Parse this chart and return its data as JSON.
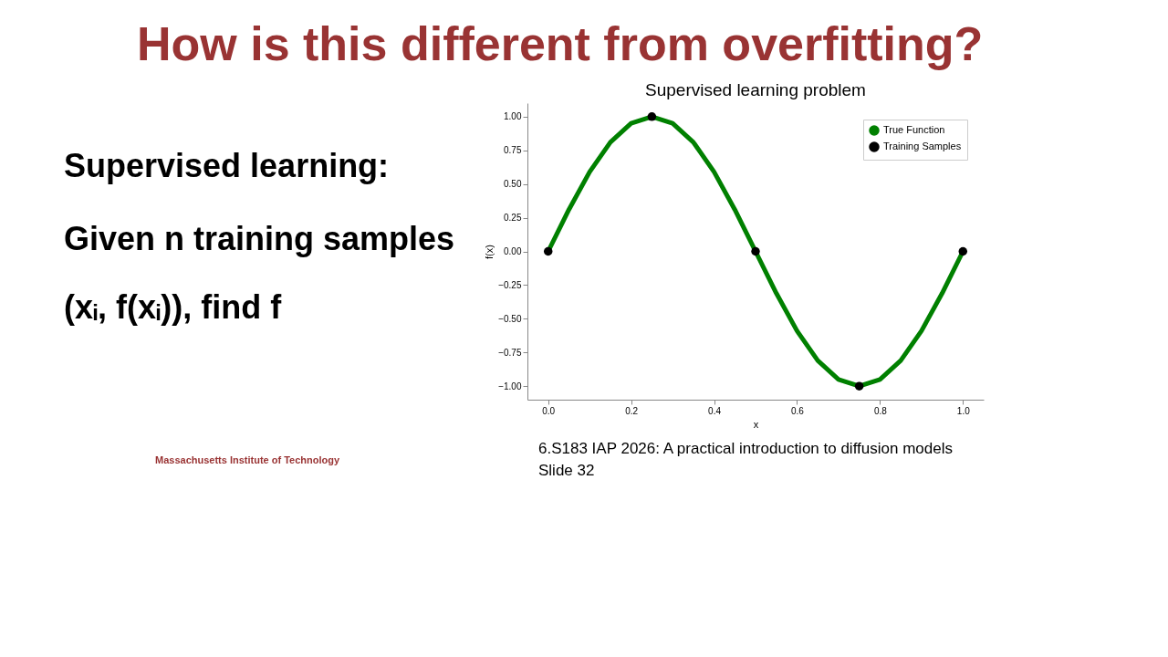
{
  "chart_data": {
    "type": "line",
    "title": "Supervised learning problem",
    "xlabel": "x",
    "ylabel": "f(x)",
    "annotations": [
      "How is this different from overfitting?",
      "Supervised learning:",
      "Given n training samples",
      "(xᵢ, f(xᵢ)), find f",
      "Massachusetts Institute of Technology",
      "6.S183 IAP 2026: A practical introduction to diffusion models",
      "Slide 32"
    ],
    "series": [
      {
        "name": "True Function",
        "color": "#008000",
        "x": [
          0,
          0.05,
          0.1,
          0.15,
          0.2,
          0.25,
          0.3,
          0.35,
          0.4,
          0.45,
          0.5,
          0.55,
          0.6,
          0.65,
          0.7,
          0.75,
          0.8,
          0.85,
          0.9,
          0.95,
          1
        ],
        "values": [
          0,
          0.31,
          0.59,
          0.81,
          0.95,
          1,
          0.95,
          0.81,
          0.59,
          0.31,
          0,
          -0.31,
          -0.59,
          -0.81,
          -0.95,
          -1,
          -0.95,
          -0.81,
          -0.59,
          -0.31,
          0
        ]
      },
      {
        "name": "Training Samples",
        "type": "scatter",
        "color": "#000000",
        "x": [
          0,
          0.25,
          0.5,
          0.75,
          1
        ],
        "values": [
          0,
          1,
          0,
          -1,
          0
        ]
      }
    ],
    "line_style": "solid",
    "legend": "top right",
    "grid": false,
    "xlim": [
      -0.05,
      1.05
    ],
    "ylim": [
      -1.1,
      1.1
    ],
    "xticks": [
      {
        "value": 0,
        "label": "0.0"
      },
      {
        "value": 0.2,
        "label": "0.2"
      },
      {
        "value": 0.4,
        "label": "0.4"
      },
      {
        "value": 0.6,
        "label": "0.6"
      },
      {
        "value": 0.8,
        "label": "0.8"
      },
      {
        "value": 1,
        "label": "1.0"
      }
    ],
    "yticks": [
      {
        "value": -1,
        "label": "−1.00"
      },
      {
        "value": -0.75,
        "label": "−0.75"
      },
      {
        "value": -0.5,
        "label": "−0.50"
      },
      {
        "value": -0.25,
        "label": "−0.25"
      },
      {
        "value": 0,
        "label": "0.00"
      },
      {
        "value": 0.25,
        "label": "0.25"
      },
      {
        "value": 0.5,
        "label": "0.50"
      },
      {
        "value": 0.75,
        "label": "0.75"
      },
      {
        "value": 1,
        "label": "1.00"
      }
    ]
  }
}
